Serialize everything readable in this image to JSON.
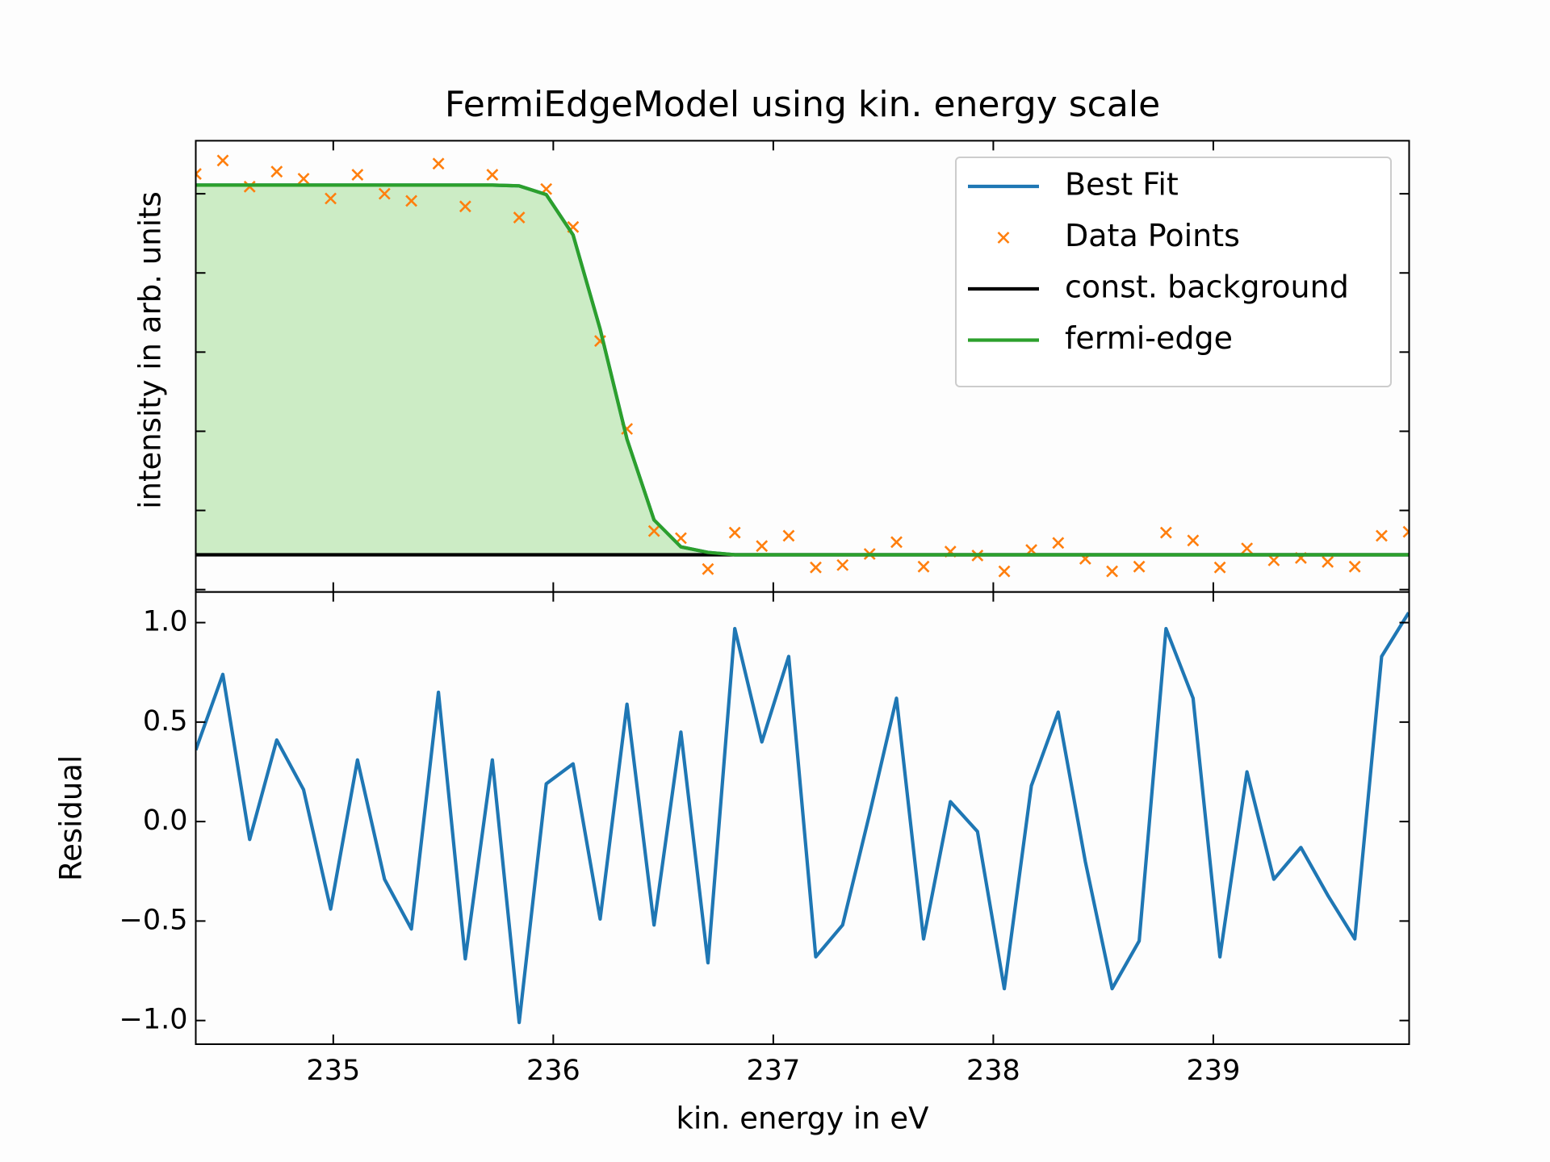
{
  "chart_data": [
    {
      "type": "line",
      "title": "FermiEdgeModel using kin. energy scale",
      "ylabel": "intensity in arb. units",
      "x": [
        234.375,
        234.498,
        234.62,
        234.743,
        234.865,
        234.988,
        235.11,
        235.233,
        235.355,
        235.478,
        235.6,
        235.723,
        235.845,
        235.968,
        236.09,
        236.213,
        236.335,
        236.458,
        236.58,
        236.703,
        236.825,
        236.948,
        237.07,
        237.193,
        237.315,
        237.438,
        237.56,
        237.683,
        237.805,
        237.928,
        238.05,
        238.173,
        238.295,
        238.418,
        238.54,
        238.663,
        238.785,
        238.908,
        239.03,
        239.153,
        239.275,
        239.398,
        239.52,
        239.643,
        239.765,
        239.888
      ],
      "series": [
        {
          "name": "Best Fit",
          "color": "#1f77b4",
          "marker": "line",
          "values": [
            5.11,
            5.11,
            5.11,
            5.11,
            5.11,
            5.11,
            5.11,
            5.11,
            5.11,
            5.11,
            5.11,
            5.11,
            5.1,
            4.99,
            4.48,
            3.29,
            1.9,
            0.88,
            0.54,
            0.47,
            0.44,
            0.44,
            0.44,
            0.44,
            0.44,
            0.44,
            0.44,
            0.44,
            0.44,
            0.44,
            0.44,
            0.44,
            0.44,
            0.44,
            0.44,
            0.44,
            0.44,
            0.44,
            0.44,
            0.44,
            0.44,
            0.44,
            0.44,
            0.44,
            0.44,
            0.44
          ]
        },
        {
          "name": "Data Points",
          "color": "#ff7f0e",
          "marker": "x",
          "values": [
            5.25,
            5.42,
            5.09,
            5.28,
            5.19,
            4.94,
            5.24,
            5.0,
            4.91,
            5.38,
            4.84,
            5.24,
            4.7,
            5.06,
            4.58,
            3.14,
            2.03,
            0.74,
            0.65,
            0.26,
            0.72,
            0.55,
            0.68,
            0.28,
            0.31,
            0.45,
            0.6,
            0.29,
            0.48,
            0.43,
            0.23,
            0.5,
            0.59,
            0.39,
            0.23,
            0.29,
            0.72,
            0.62,
            0.28,
            0.52,
            0.37,
            0.4,
            0.35,
            0.29,
            0.68,
            0.73
          ]
        },
        {
          "name": "const. background",
          "color": "#000000",
          "marker": "line",
          "values": [
            0.44,
            0.44,
            0.44,
            0.44,
            0.44,
            0.44,
            0.44,
            0.44,
            0.44,
            0.44,
            0.44,
            0.44,
            0.44,
            0.44,
            0.44,
            0.44,
            0.44,
            0.44,
            0.44,
            0.44,
            0.44,
            0.44,
            0.44,
            0.44,
            0.44,
            0.44,
            0.44,
            0.44,
            0.44,
            0.44,
            0.44,
            0.44,
            0.44,
            0.44,
            0.44,
            0.44,
            0.44,
            0.44,
            0.44,
            0.44,
            0.44,
            0.44,
            0.44,
            0.44,
            0.44,
            0.44
          ]
        },
        {
          "name": "fermi-edge",
          "color": "#2ca02c",
          "marker": "line",
          "fill": "#ccecc5",
          "values": [
            5.11,
            5.11,
            5.11,
            5.11,
            5.11,
            5.11,
            5.11,
            5.11,
            5.11,
            5.11,
            5.11,
            5.11,
            5.1,
            4.99,
            4.48,
            3.29,
            1.9,
            0.88,
            0.54,
            0.47,
            0.44,
            0.44,
            0.44,
            0.44,
            0.44,
            0.44,
            0.44,
            0.44,
            0.44,
            0.44,
            0.44,
            0.44,
            0.44,
            0.44,
            0.44,
            0.44,
            0.44,
            0.44,
            0.44,
            0.44,
            0.44,
            0.44,
            0.44,
            0.44,
            0.44,
            0.44
          ]
        }
      ],
      "xlim": [
        234.375,
        239.89
      ],
      "xticks": [
        235,
        236,
        237,
        238,
        239
      ],
      "xtick_labels": false,
      "ylim": [
        -0.03,
        5.67
      ],
      "yticks": [
        0,
        1,
        2,
        3,
        4,
        5
      ],
      "ytick_labels": false,
      "legend": "upper right"
    },
    {
      "type": "line",
      "xlabel": "kin. energy in eV",
      "ylabel": "Residual",
      "x": [
        234.375,
        234.498,
        234.62,
        234.743,
        234.865,
        234.988,
        235.11,
        235.233,
        235.355,
        235.478,
        235.6,
        235.723,
        235.845,
        235.968,
        236.09,
        236.213,
        236.335,
        236.458,
        236.58,
        236.703,
        236.825,
        236.948,
        237.07,
        237.193,
        237.315,
        237.438,
        237.56,
        237.683,
        237.805,
        237.928,
        238.05,
        238.173,
        238.295,
        238.418,
        238.54,
        238.663,
        238.785,
        238.908,
        239.03,
        239.153,
        239.275,
        239.398,
        239.52,
        239.643,
        239.765,
        239.888
      ],
      "series": [
        {
          "color": "#1f77b4",
          "marker": "line",
          "values": [
            0.36,
            0.74,
            -0.09,
            0.41,
            0.16,
            -0.44,
            0.31,
            -0.29,
            -0.54,
            0.65,
            -0.69,
            0.31,
            -1.01,
            0.19,
            0.29,
            -0.49,
            0.59,
            -0.52,
            0.45,
            -0.71,
            0.97,
            0.4,
            0.83,
            -0.68,
            -0.52,
            0.04,
            0.62,
            -0.59,
            0.1,
            -0.05,
            -0.84,
            0.18,
            0.55,
            -0.2,
            -0.84,
            -0.6,
            0.97,
            0.62,
            -0.68,
            0.25,
            -0.29,
            -0.13,
            -0.37,
            -0.59,
            0.83,
            1.05
          ]
        }
      ],
      "xlim": [
        234.375,
        239.89
      ],
      "xticks": [
        235,
        236,
        237,
        238,
        239
      ],
      "xtick_labels": true,
      "ylim": [
        -1.119,
        1.154
      ],
      "yticks": [
        {
          "value": 1.0,
          "label": "1.0"
        },
        {
          "value": 0.5,
          "label": "0.5"
        },
        {
          "value": 0.0,
          "label": "0.0"
        },
        {
          "value": -0.5,
          "label": "−0.5"
        },
        {
          "value": -1.0,
          "label": "−1.0"
        }
      ],
      "ytick_labels": true
    }
  ]
}
